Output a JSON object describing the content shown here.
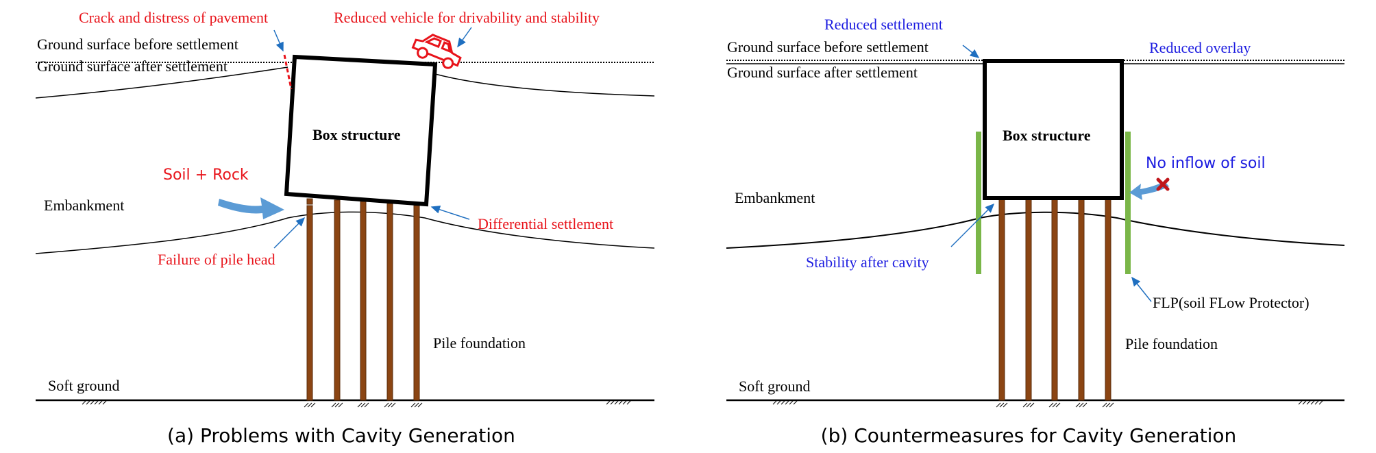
{
  "panel_a": {
    "ground_before": "Ground surface before settlement",
    "ground_after": "Ground surface after settlement",
    "crack": "Crack and distress of pavement",
    "vehicle": "Reduced vehicle for drivability and stability",
    "box": "Box structure",
    "soil_rock": "Soil + Rock",
    "embankment": "Embankment",
    "differential": "Differential settlement",
    "pile_head": "Failure of pile head",
    "pile_foundation": "Pile foundation",
    "soft_ground": "Soft ground",
    "caption": "(a) Problems with Cavity Generation"
  },
  "panel_b": {
    "reduced_settlement": "Reduced settlement",
    "ground_before": "Ground surface before settlement",
    "reduced_overlay": "Reduced overlay",
    "ground_after": "Ground surface after settlement",
    "box": "Box structure",
    "no_inflow": "No inflow of soil",
    "embankment": "Embankment",
    "stability": "Stability after cavity",
    "flp": "FLP(soil FLow Protector)",
    "pile_foundation": "Pile foundation",
    "soft_ground": "Soft ground",
    "caption": "(b) Countermeasures for Cavity Generation"
  },
  "colors": {
    "problem_text": "#e8141b",
    "solution_text": "#1c1ce0",
    "pile": "#8b4513",
    "flp": "#7ab648",
    "arrow": "#1f6fc0",
    "big_arrow": "#5b9bd5"
  }
}
